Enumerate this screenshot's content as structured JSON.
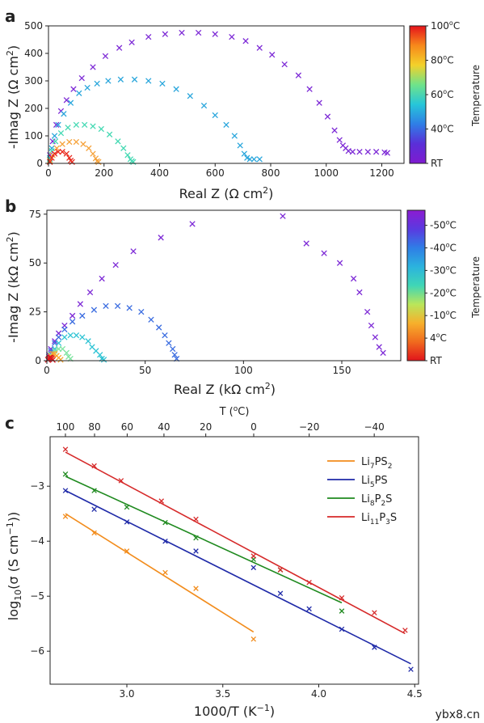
{
  "chart_data": [
    {
      "panel_label": "a",
      "type": "scatter",
      "title": "",
      "xlabel": "Real Z (Ω cm",
      "xlabel_sup": "2",
      "xlabel_end": ")",
      "ylabel": "-Imag Z (Ω cm",
      "ylabel_sup": "2",
      "ylabel_end": ")",
      "xlim": [
        0,
        1280
      ],
      "ylim": [
        0,
        500
      ],
      "xticks": [
        0,
        200,
        400,
        600,
        800,
        1000,
        1200
      ],
      "yticks": [
        0,
        100,
        200,
        300,
        400,
        500
      ],
      "marker": "x",
      "colorbar": {
        "label": "Temperature",
        "ticks": [
          {
            "pos": 0.0,
            "text": "100",
            "sup": "o",
            "unit": "C"
          },
          {
            "pos": 0.25,
            "text": "80",
            "sup": "o",
            "unit": "C"
          },
          {
            "pos": 0.5,
            "text": "60",
            "sup": "o",
            "unit": "C"
          },
          {
            "pos": 0.75,
            "text": "40",
            "sup": "o",
            "unit": "C"
          },
          {
            "pos": 1.0,
            "text": "RT",
            "sup": "",
            "unit": ""
          }
        ],
        "gradient": [
          "#e5121b",
          "#f7891b",
          "#f3d12a",
          "#6fe38a",
          "#26c6d9",
          "#2f7ee6",
          "#5a2fd8",
          "#7f1bd0"
        ]
      },
      "series": [
        {
          "color": "#7d2ad6",
          "x": [
            5,
            15,
            28,
            45,
            65,
            90,
            120,
            160,
            205,
            255,
            300,
            360,
            420,
            480,
            540,
            600,
            660,
            710,
            760,
            805,
            850,
            900,
            940,
            975,
            1005,
            1030,
            1048,
            1060,
            1070,
            1080,
            1095,
            1120,
            1150,
            1180,
            1210,
            1220
          ],
          "y": [
            30,
            80,
            140,
            190,
            230,
            270,
            310,
            350,
            390,
            420,
            440,
            460,
            470,
            475,
            475,
            470,
            460,
            445,
            420,
            395,
            360,
            320,
            270,
            220,
            170,
            120,
            85,
            65,
            55,
            45,
            42,
            42,
            42,
            42,
            40,
            38
          ]
        },
        {
          "color": "#2aa6dc",
          "x": [
            5,
            12,
            22,
            35,
            55,
            80,
            110,
            140,
            175,
            215,
            260,
            310,
            360,
            410,
            460,
            510,
            560,
            600,
            640,
            670,
            690,
            705,
            715,
            725,
            740,
            760
          ],
          "y": [
            20,
            55,
            100,
            140,
            180,
            220,
            255,
            275,
            290,
            300,
            305,
            305,
            300,
            290,
            270,
            245,
            210,
            175,
            140,
            100,
            65,
            35,
            20,
            15,
            15,
            15
          ]
        },
        {
          "color": "#45d9b3",
          "x": [
            5,
            12,
            25,
            45,
            70,
            100,
            130,
            160,
            190,
            220,
            250,
            270,
            285,
            295,
            300,
            305
          ],
          "y": [
            15,
            45,
            80,
            110,
            130,
            140,
            140,
            135,
            125,
            105,
            80,
            55,
            30,
            15,
            8,
            5
          ]
        },
        {
          "color": "#f6a23a",
          "x": [
            5,
            15,
            30,
            50,
            75,
            100,
            125,
            145,
            160,
            170,
            175,
            180
          ],
          "y": [
            10,
            30,
            55,
            70,
            78,
            78,
            70,
            55,
            35,
            18,
            8,
            5
          ]
        },
        {
          "color": "#ea2b1f",
          "x": [
            5,
            12,
            22,
            35,
            50,
            65,
            75,
            80,
            85
          ],
          "y": [
            5,
            20,
            35,
            42,
            42,
            35,
            20,
            10,
            5
          ]
        }
      ]
    },
    {
      "panel_label": "b",
      "type": "scatter",
      "title": "",
      "xlabel": "Real Z (kΩ cm",
      "xlabel_sup": "2",
      "xlabel_end": ")",
      "ylabel": "-Imag Z (kΩ cm",
      "ylabel_sup": "2",
      "ylabel_end": ")",
      "xlim": [
        0,
        180
      ],
      "ylim": [
        0,
        77
      ],
      "xticks": [
        0,
        50,
        100,
        150
      ],
      "yticks": [
        0,
        25,
        50,
        75
      ],
      "marker": "x",
      "colorbar": {
        "label": "Temperature",
        "ticks": [
          {
            "pos": 0.1,
            "text": "-50",
            "sup": "o",
            "unit": "C"
          },
          {
            "pos": 0.25,
            "text": "-40",
            "sup": "o",
            "unit": "C"
          },
          {
            "pos": 0.4,
            "text": "-30",
            "sup": "o",
            "unit": "C"
          },
          {
            "pos": 0.55,
            "text": "-20",
            "sup": "o",
            "unit": "C"
          },
          {
            "pos": 0.7,
            "text": "-10",
            "sup": "o",
            "unit": "C"
          },
          {
            "pos": 0.85,
            "text": "4",
            "sup": "o",
            "unit": "C"
          },
          {
            "pos": 1.0,
            "text": "RT",
            "sup": "",
            "unit": ""
          }
        ],
        "gradient": [
          "#8c1bd2",
          "#5a3ae0",
          "#2f7ee6",
          "#2bb3de",
          "#3fd6b6",
          "#b9e65a",
          "#f7b02c",
          "#f06a1e",
          "#e1141c"
        ]
      },
      "series": [
        {
          "color": "#7d2ad6",
          "x": [
            1,
            2,
            4,
            6,
            9,
            13,
            17,
            22,
            28,
            35,
            44,
            58,
            74,
            120,
            132,
            141,
            149,
            156,
            159,
            163,
            165,
            167,
            169,
            171
          ],
          "y": [
            3,
            6,
            10,
            14,
            18,
            23,
            29,
            35,
            42,
            49,
            56,
            63,
            70,
            74,
            60,
            55,
            50,
            42,
            35,
            25,
            18,
            12,
            7,
            4
          ]
        },
        {
          "color": "#3a6ce0",
          "x": [
            1,
            2,
            4,
            6,
            9,
            13,
            18,
            24,
            30,
            36,
            42,
            48,
            53,
            57,
            60,
            62,
            64,
            65,
            66
          ],
          "y": [
            2,
            5,
            9,
            12,
            16,
            20,
            23,
            26,
            28,
            28,
            27,
            25,
            21,
            17,
            13,
            9,
            6,
            3,
            1
          ]
        },
        {
          "color": "#2ec3d4",
          "x": [
            1,
            2,
            4,
            6,
            9,
            12,
            15,
            18,
            21,
            23,
            25,
            27,
            28,
            29
          ],
          "y": [
            1,
            3,
            6,
            9,
            12,
            13,
            13,
            12,
            10,
            7,
            5,
            3,
            1,
            0.5
          ]
        },
        {
          "color": "#7fe4a0",
          "x": [
            1,
            2,
            4,
            6,
            8,
            10,
            11,
            12
          ],
          "y": [
            1,
            3,
            5,
            6,
            6,
            4,
            2,
            1
          ]
        },
        {
          "color": "#f7a52d",
          "x": [
            1,
            2,
            3,
            4,
            5,
            6,
            7
          ],
          "y": [
            1,
            2.5,
            3.5,
            3.5,
            2.5,
            1.5,
            0.5
          ]
        },
        {
          "color": "#e1141c",
          "x": [
            0.5,
            1,
            1.5,
            2,
            2.5,
            3
          ],
          "y": [
            0.5,
            1.2,
            1.6,
            1.6,
            1.1,
            0.4
          ]
        }
      ]
    },
    {
      "panel_label": "c",
      "type": "scatter",
      "title": "",
      "xlabel": "1000/T (K",
      "xlabel_sup": "−1",
      "xlabel_end": ")",
      "ylabel": "log",
      "ylabel_sub": "10",
      "ylabel_end": "(σ (S cm",
      "ylabel_sup": "−1",
      "ylabel_end2": "))",
      "top_xlabel": "T (",
      "top_xlabel_sup": "o",
      "top_xlabel_end": "C)",
      "xlim": [
        2.6,
        4.52
      ],
      "ylim": [
        -6.6,
        -2.1
      ],
      "xticks": [
        3.0,
        3.5,
        4.0,
        4.5
      ],
      "xtick_labels": [
        "3.0",
        "3.5",
        "4.0",
        "4.5"
      ],
      "yticks": [
        -6,
        -5,
        -4,
        -3
      ],
      "ytick_labels": [
        "−6",
        "−5",
        "−4",
        "−3"
      ],
      "top_ticks": [
        {
          "label": "100",
          "celsius": 100
        },
        {
          "label": "80",
          "celsius": 80
        },
        {
          "label": "60",
          "celsius": 60
        },
        {
          "label": "40",
          "celsius": 40
        },
        {
          "label": "20",
          "celsius": 20
        },
        {
          "label": "0",
          "celsius": 0
        },
        {
          "label": "−20",
          "celsius": -20
        },
        {
          "label": "−40",
          "celsius": -40
        }
      ],
      "legend_position": "top-right",
      "series": [
        {
          "name_main": "Li",
          "name_parts": [
            [
              "Li",
              ""
            ],
            [
              "7",
              "sub"
            ],
            [
              "PS",
              ""
            ],
            [
              "2",
              "sub"
            ]
          ],
          "color": "#f28c1c",
          "x": [
            2.68,
            2.83,
            3.0,
            3.2,
            3.36,
            3.66
          ],
          "y": [
            -3.55,
            -3.85,
            -4.18,
            -4.57,
            -4.86,
            -5.78
          ],
          "fit_x": [
            2.68,
            3.66
          ],
          "fit_y": [
            -3.5,
            -5.65
          ]
        },
        {
          "name_main": "Li",
          "name_parts": [
            [
              "Li",
              ""
            ],
            [
              "5",
              "sub"
            ],
            [
              "PS",
              ""
            ],
            [
              "",
              ""
            ]
          ],
          "color": "#1f2aa8",
          "x": [
            2.68,
            2.83,
            3.0,
            3.2,
            3.36,
            3.66,
            3.8,
            3.95,
            4.12,
            4.29,
            4.48
          ],
          "y": [
            -3.08,
            -3.42,
            -3.65,
            -4.0,
            -4.18,
            -4.48,
            -4.95,
            -5.23,
            -5.6,
            -5.93,
            -6.33
          ],
          "fit_x": [
            2.68,
            4.48
          ],
          "fit_y": [
            -3.08,
            -6.23
          ]
        },
        {
          "name_main": "Li",
          "name_parts": [
            [
              "Li",
              ""
            ],
            [
              "8",
              "sub"
            ],
            [
              "P",
              ""
            ],
            [
              "2",
              "sub"
            ],
            [
              "S",
              ""
            ]
          ],
          "color": "#1f8a1f",
          "x": [
            2.68,
            2.83,
            3.0,
            3.2,
            3.36,
            3.66,
            3.8,
            4.12
          ],
          "y": [
            -2.78,
            -3.08,
            -3.38,
            -3.66,
            -3.94,
            -4.33,
            -4.52,
            -5.27
          ],
          "fit_x": [
            2.68,
            4.12
          ],
          "fit_y": [
            -2.82,
            -5.12
          ]
        },
        {
          "name_main": "Li",
          "name_parts": [
            [
              "Li",
              ""
            ],
            [
              "11",
              "sub"
            ],
            [
              "P",
              ""
            ],
            [
              "3",
              "sub"
            ],
            [
              "S",
              ""
            ]
          ],
          "color": "#d62a2a",
          "x": [
            2.68,
            2.83,
            2.97,
            3.18,
            3.36,
            3.66,
            3.8,
            3.95,
            4.12,
            4.29,
            4.45
          ],
          "y": [
            -2.33,
            -2.63,
            -2.9,
            -3.27,
            -3.6,
            -4.27,
            -4.52,
            -4.75,
            -5.03,
            -5.3,
            -5.62
          ],
          "fit_x": [
            2.68,
            4.45
          ],
          "fit_y": [
            -2.38,
            -5.68
          ]
        }
      ]
    }
  ],
  "watermark": "ybx8.cn"
}
